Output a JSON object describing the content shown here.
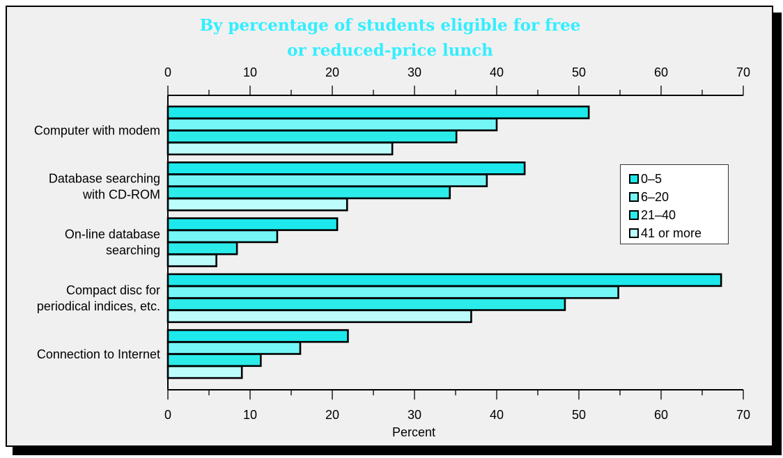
{
  "chart_data": {
    "type": "bar",
    "orientation": "horizontal",
    "title_lines": [
      "By percentage of students eligible for free",
      "or reduced-price lunch"
    ],
    "title_color": "#33eeff",
    "categories": [
      [
        "Computer with modem"
      ],
      [
        "Database searching",
        "with CD-ROM"
      ],
      [
        "On-line database",
        "searching"
      ],
      [
        "Compact disc for",
        "periodical indices, etc."
      ],
      [
        "Connection to Internet"
      ]
    ],
    "series": [
      {
        "name": "0–5",
        "values": [
          51.2,
          43.4,
          20.6,
          67.3,
          21.9
        ],
        "color": "#1de9ec"
      },
      {
        "name": "6–20",
        "values": [
          40.0,
          38.8,
          13.3,
          54.8,
          16.1
        ],
        "color": "#74f6f6"
      },
      {
        "name": "21–40",
        "values": [
          35.1,
          34.3,
          8.4,
          48.3,
          11.3
        ],
        "color": "#2cecea"
      },
      {
        "name": "41 or more",
        "values": [
          27.3,
          21.8,
          5.9,
          36.9,
          9.0
        ],
        "color": "#bcfdfc"
      }
    ],
    "xlabel": "Percent",
    "xlim": [
      0,
      70
    ],
    "xticks": [
      "0",
      "10",
      "20",
      "30",
      "40",
      "50",
      "60",
      "70"
    ],
    "minor_tick_step": 5,
    "tick_labels_top": true,
    "tick_labels_bottom": true,
    "grid": false,
    "legend_position": "right"
  }
}
